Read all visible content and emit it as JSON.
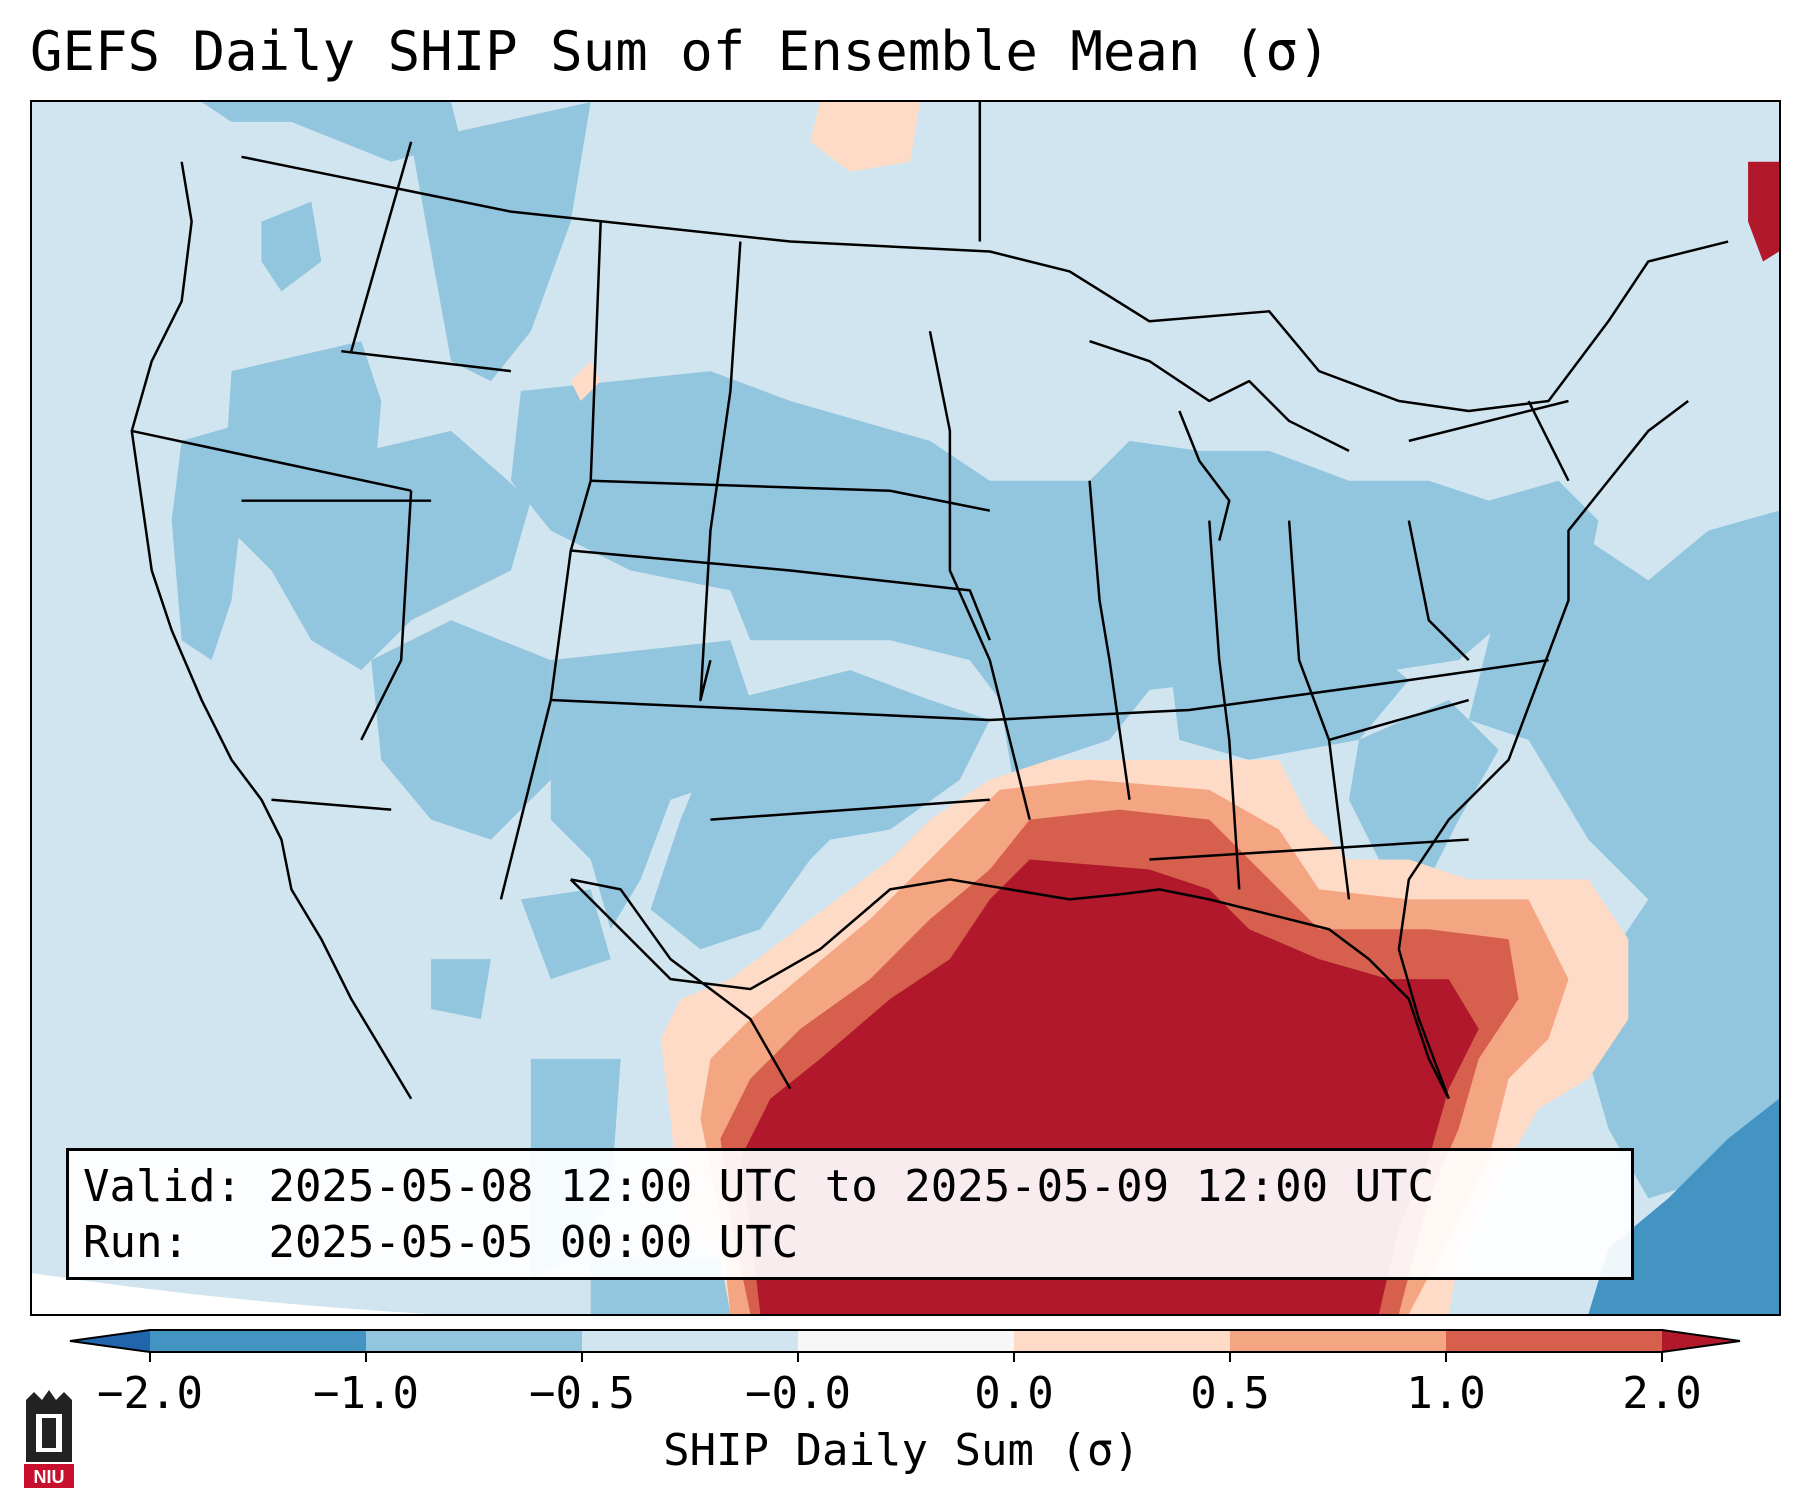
{
  "title": "GEFS Daily SHIP Sum of Ensemble Mean (σ)",
  "info": {
    "valid_label": "Valid:",
    "valid_value": "2025-05-08 12:00 UTC to 2025-05-09 12:00 UTC",
    "run_label": "Run:",
    "run_value": "2025-05-05 00:00 UTC"
  },
  "colorbar": {
    "label": "SHIP Daily Sum (σ)",
    "ticks": [
      "−2.0",
      "−1.0",
      "−0.5",
      "−0.0",
      "0.0",
      "0.5",
      "1.0",
      "2.0"
    ],
    "bins": [
      {
        "range": "< -2.0",
        "color": "#2166ac"
      },
      {
        "range": "-2.0 to -1.0",
        "color": "#4393c3"
      },
      {
        "range": "-1.0 to -0.5",
        "color": "#92c5de"
      },
      {
        "range": "-0.5 to -0.0",
        "color": "#d1e5f0"
      },
      {
        "range": "-0.0 to 0.0",
        "color": "#f7f7f7"
      },
      {
        "range": "0.0 to 0.5",
        "color": "#fddbc7"
      },
      {
        "range": "0.5 to 1.0",
        "color": "#f4a582"
      },
      {
        "range": "1.0 to 2.0",
        "color": "#d6604d"
      },
      {
        "range": "> 2.0",
        "color": "#b2182b"
      }
    ]
  },
  "map": {
    "region": "Contiguous United States and Gulf of Mexico",
    "projection": "Lambert conformal",
    "fields": [
      {
        "area": "Gulf of Mexico, Texas, Louisiana, Mississippi, Alabama, Florida coast",
        "category": "> 2.0",
        "color": "#b2182b"
      },
      {
        "area": "Gulf coast fringe",
        "category": "1.0 to 2.0",
        "color": "#d6604d"
      },
      {
        "area": "outer Gulf fringe",
        "category": "0.5 to 1.0",
        "color": "#f4a582"
      },
      {
        "area": "Tennessee Valley / southern Atlantic fringe",
        "category": "0.0 to 0.5",
        "color": "#fddbc7"
      },
      {
        "area": "Central Plains, Midwest, Ohio Valley",
        "category": "-1.0 to -0.5",
        "color": "#92c5de"
      },
      {
        "area": "Northern tier and West",
        "category": "-0.5 to -0.0",
        "color": "#d1e5f0"
      },
      {
        "area": "Caribbean / western Atlantic",
        "category": "-2.0 to -1.0",
        "color": "#4393c3"
      }
    ]
  },
  "logo": {
    "text": "NIU"
  }
}
